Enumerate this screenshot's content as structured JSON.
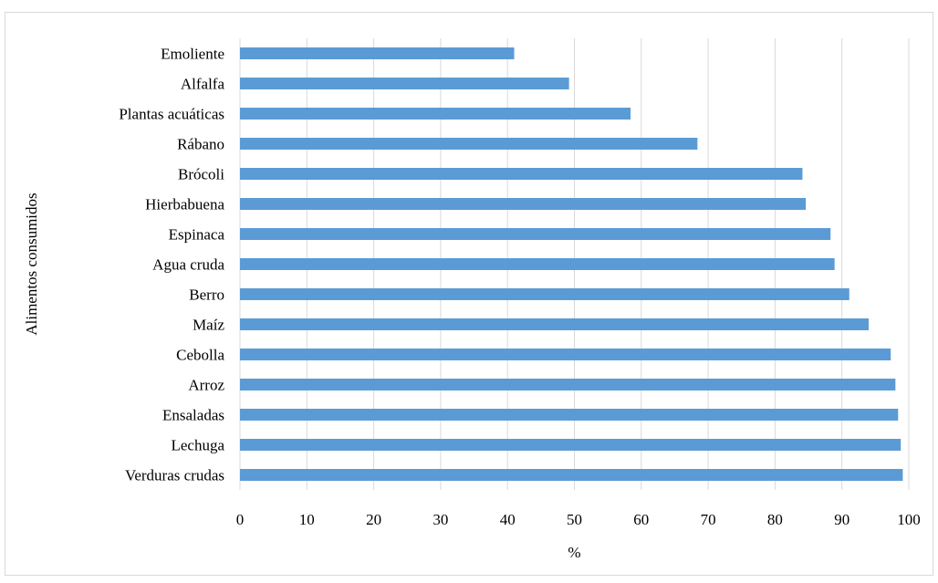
{
  "chart_data": {
    "type": "bar",
    "orientation": "horizontal",
    "categories": [
      "Verduras crudas",
      "Lechuga",
      "Ensaladas",
      "Arroz",
      "Cebolla",
      "Maíz",
      "Berro",
      "Agua cruda",
      "Espinaca",
      "Hierbabuena",
      "Brócoli",
      "Rábano",
      "Plantas acuáticas",
      "Alfalfa",
      "Emoliente"
    ],
    "values": [
      99.1,
      98.8,
      98.4,
      98.0,
      97.3,
      94.0,
      91.1,
      88.9,
      88.3,
      84.6,
      84.1,
      68.4,
      58.4,
      49.2,
      41.0
    ],
    "title": "",
    "xlabel": "%",
    "ylabel": "Alimentos consumidos",
    "xlim": [
      0,
      100
    ],
    "xticks": [
      0,
      10,
      20,
      30,
      40,
      50,
      60,
      70,
      80,
      90,
      100
    ],
    "grid": "vertical",
    "legend": "none",
    "bar_color": "#5b9bd5",
    "grid_color": "#d9d9d9"
  }
}
